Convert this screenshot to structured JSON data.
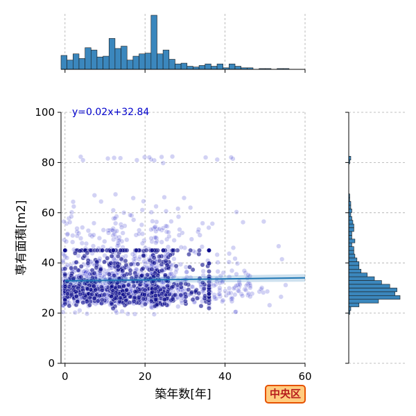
{
  "chart_data": {
    "type": "scatter",
    "xlabel": "築年数[年]",
    "ylabel": "専有面積[m2]",
    "xlim": [
      -1,
      60
    ],
    "ylim": [
      0,
      100
    ],
    "xticks": [
      0,
      20,
      40,
      60
    ],
    "yticks": [
      0,
      20,
      40,
      60,
      80,
      100
    ],
    "x_tick_labels": [
      "0",
      "20",
      "40",
      "60"
    ],
    "y_tick_labels": [
      "0",
      "20",
      "40",
      "60",
      "80",
      "100"
    ],
    "grid": true,
    "regression": {
      "label": "y=0.02x+32.84",
      "slope": 0.02,
      "intercept": 32.84
    },
    "badge": "中央区",
    "colors": {
      "points": "#3333cc",
      "dense_points": "#0a0a8a",
      "regression": "#1f77b4",
      "hist": "#3b87bd",
      "equation": "#0000cc",
      "badge_bg": "#ffcc80",
      "badge_border": "#e65100",
      "badge_text": "#b71c1c"
    },
    "x_hist": {
      "bin_width": 1.5,
      "start": -1,
      "counts": [
        18,
        12,
        20,
        14,
        28,
        25,
        16,
        17,
        40,
        27,
        30,
        12,
        17,
        20,
        21,
        70,
        20,
        25,
        13,
        7,
        8,
        4,
        3,
        5,
        7,
        4,
        7,
        2,
        7,
        4,
        2,
        2,
        0,
        1,
        1,
        0,
        1,
        1
      ]
    },
    "y_hist": {
      "bin_width": 1.5,
      "start": 0,
      "counts": [
        0,
        0,
        0,
        0,
        0,
        0,
        0,
        0,
        0,
        0,
        0,
        0,
        0,
        1,
        2,
        10,
        29,
        50,
        45,
        47,
        40,
        32,
        25,
        18,
        12,
        10,
        10,
        8,
        6,
        5,
        5,
        3,
        6,
        3,
        3,
        5,
        5,
        4,
        3,
        2,
        3,
        2,
        2,
        1,
        1,
        0,
        0,
        0,
        0,
        0,
        0,
        0,
        0,
        1,
        2,
        0,
        0,
        0,
        0,
        0,
        0,
        0,
        0,
        0,
        0,
        0,
        0
      ]
    }
  }
}
